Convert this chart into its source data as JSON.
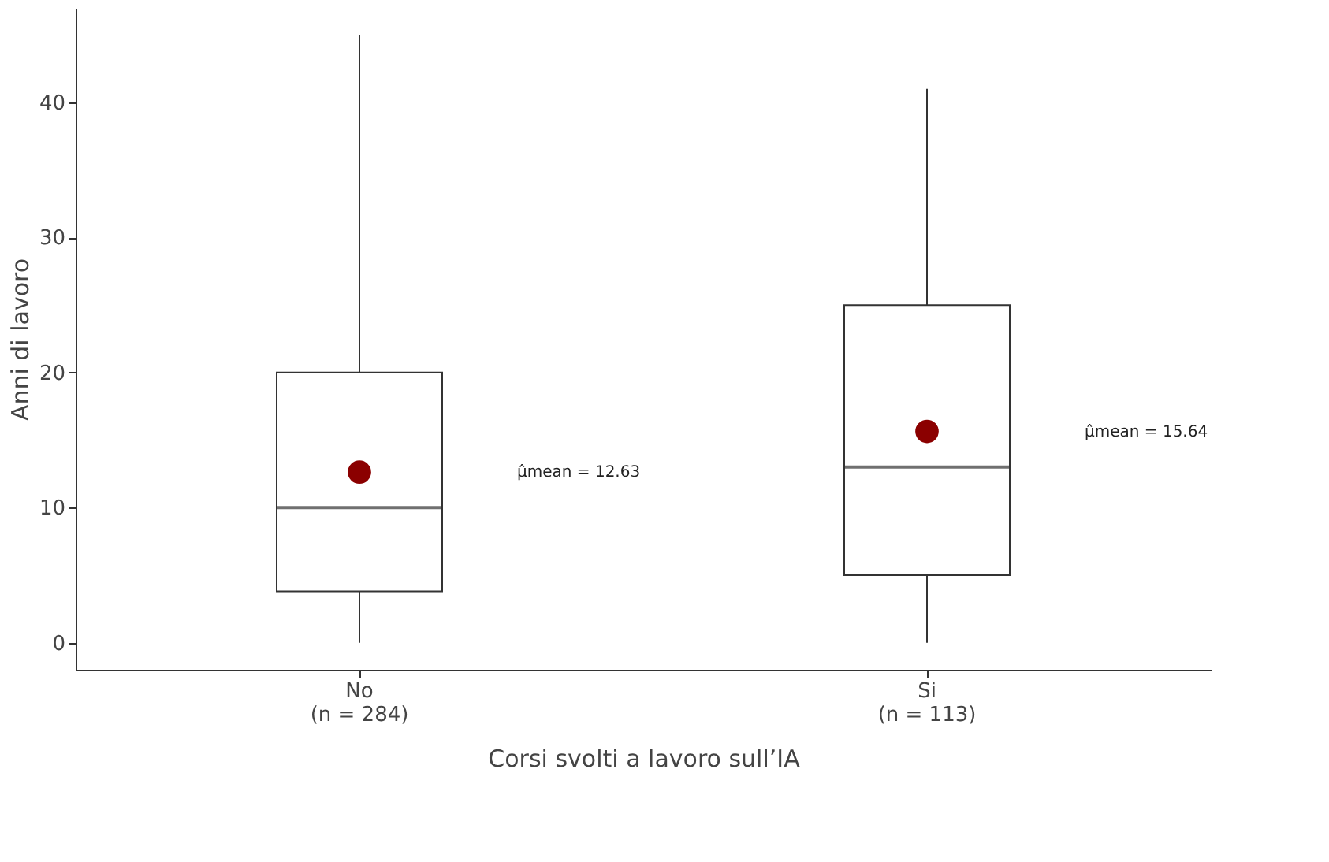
{
  "chart_data": {
    "type": "box",
    "xlabel": "Corsi svolti a lavoro sull’IA",
    "ylabel": "Anni di lavoro",
    "categories": [
      "No\n(n = 284)",
      "Si\n(n = 113)"
    ],
    "boxes": [
      {
        "low": 0,
        "q1": 3.8,
        "median": 10,
        "q3": 20,
        "high": 45,
        "mean": 12.63
      },
      {
        "low": 0,
        "q1": 5,
        "median": 13,
        "q3": 25,
        "high": 41,
        "mean": 15.64
      }
    ],
    "color": "#333333",
    "ylim": [
      -2,
      47
    ],
    "yticks": [
      0,
      10,
      20,
      30,
      40
    ],
    "grid": false,
    "annotations": [
      "μ̂mean = 12.63",
      "μ̂mean = 15.64"
    ]
  }
}
